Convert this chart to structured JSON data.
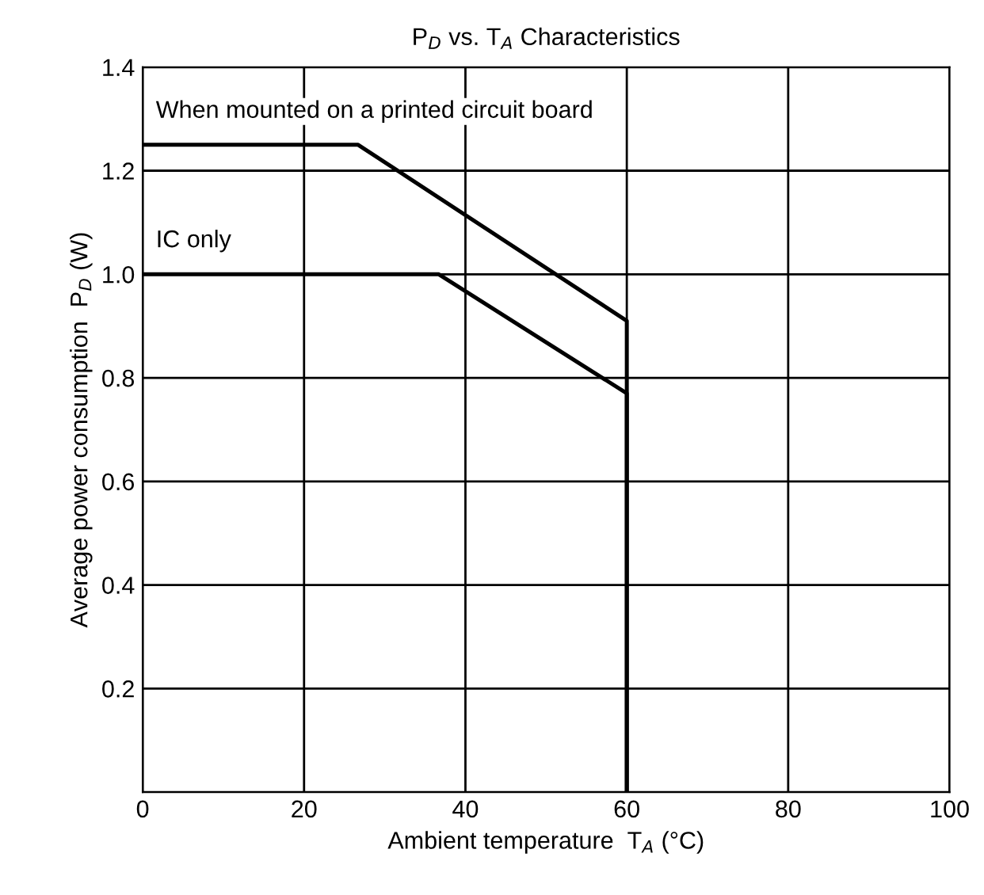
{
  "chart_data": {
    "type": "line",
    "title": "P$_{D}$ vs. T$_{A}$ Characteristics",
    "xlabel": "Ambient temperature  T$_{A}$ (°C)",
    "ylabel": "Average power consumption  P$_{D}$ (W)",
    "series": [
      {
        "name": "When mounted on a printed circuit board",
        "color": "#000000",
        "x": [
          0,
          26.7,
          60,
          60
        ],
        "values": [
          1.25,
          1.25,
          0.91,
          0
        ]
      },
      {
        "name": "IC only",
        "color": "#000000",
        "x": [
          0,
          36.7,
          60,
          60
        ],
        "values": [
          1.0,
          1.0,
          0.77,
          0
        ]
      }
    ],
    "xlim": [
      0,
      100
    ],
    "xticks": [
      0,
      20,
      40,
      60,
      80,
      100
    ],
    "ylim": [
      0,
      1.4
    ],
    "yticks": [
      {
        "value": 0,
        "label": null
      },
      0.2,
      0.4,
      0.6,
      0.8,
      {
        "value": 1,
        "label": "1.0"
      },
      1.2,
      1.4
    ],
    "grid": true,
    "line_style": "solid",
    "marker": "none"
  }
}
